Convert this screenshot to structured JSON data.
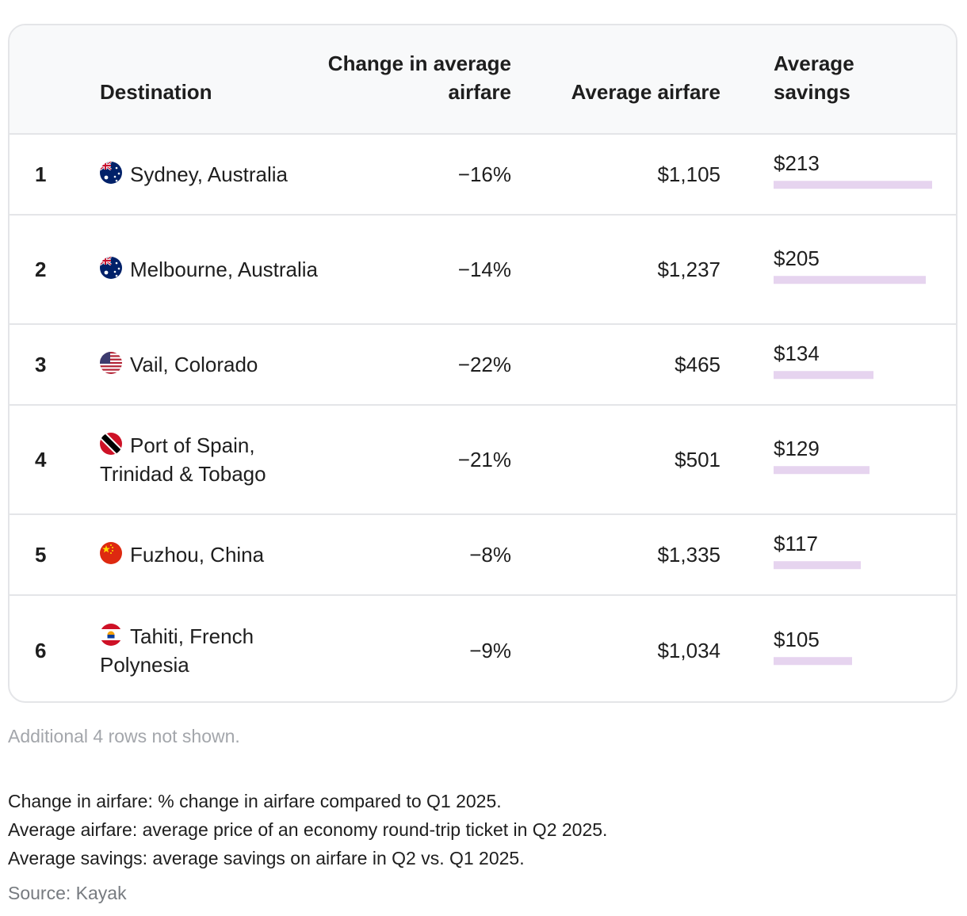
{
  "table": {
    "headers": {
      "rank": "",
      "destination": "Destination",
      "change": "Change in average airfare",
      "avg_airfare": "Average airfare",
      "avg_savings": "Average savings"
    },
    "rows": [
      {
        "rank": "1",
        "destination": "Sydney, Australia",
        "flag": "australia-flag-icon",
        "change": "−16%",
        "avg_airfare": "$1,105",
        "savings_label": "$213",
        "savings": 213
      },
      {
        "rank": "2",
        "destination": "Melbourne, Australia",
        "flag": "australia-flag-icon",
        "change": "−14%",
        "avg_airfare": "$1,237",
        "savings_label": "$205",
        "savings": 205
      },
      {
        "rank": "3",
        "destination": "Vail, Colorado",
        "flag": "usa-flag-icon",
        "change": "−22%",
        "avg_airfare": "$465",
        "savings_label": "$134",
        "savings": 134
      },
      {
        "rank": "4",
        "destination": "Port of Spain, Trinidad & Tobago",
        "flag": "trinidad-tobago-flag-icon",
        "change": "−21%",
        "avg_airfare": "$501",
        "savings_label": "$129",
        "savings": 129
      },
      {
        "rank": "5",
        "destination": "Fuzhou, China",
        "flag": "china-flag-icon",
        "change": "−8%",
        "avg_airfare": "$1,335",
        "savings_label": "$117",
        "savings": 117
      },
      {
        "rank": "6",
        "destination": "Tahiti, French Polynesia",
        "flag": "french-polynesia-flag-icon",
        "change": "−9%",
        "avg_airfare": "$1,034",
        "savings_label": "$105",
        "savings": 105
      }
    ],
    "bar_color": "#e6d4ef"
  },
  "notes": {
    "rows_hidden": "Additional 4 rows not shown.",
    "change_def": "Change in airfare: % change in airfare compared to Q1 2025.",
    "avg_def": "Average airfare: average price of an economy round-trip ticket in Q2 2025.",
    "savings_def": "Average savings: average savings on airfare in Q2 vs. Q1 2025.",
    "source": "Source: Kayak"
  },
  "chart_data": {
    "type": "table",
    "columns": [
      "",
      "Destination",
      "Change in average airfare",
      "Average airfare",
      "Average savings"
    ],
    "rows": [
      [
        "1",
        "Sydney, Australia",
        "−16%",
        "$1,105",
        "$213"
      ],
      [
        "2",
        "Melbourne, Australia",
        "−14%",
        "$1,237",
        "$205"
      ],
      [
        "3",
        "Vail, Colorado",
        "−22%",
        "$465",
        "$134"
      ],
      [
        "4",
        "Port of Spain, Trinidad & Tobago",
        "−21%",
        "$501",
        "$129"
      ],
      [
        "5",
        "Fuzhou, China",
        "−8%",
        "$1,335",
        "$117"
      ],
      [
        "6",
        "Tahiti, French Polynesia",
        "−9%",
        "$1,034",
        "$105"
      ]
    ],
    "bar_column": "Average savings",
    "bar_values": [
      213,
      205,
      134,
      129,
      117,
      105
    ]
  }
}
